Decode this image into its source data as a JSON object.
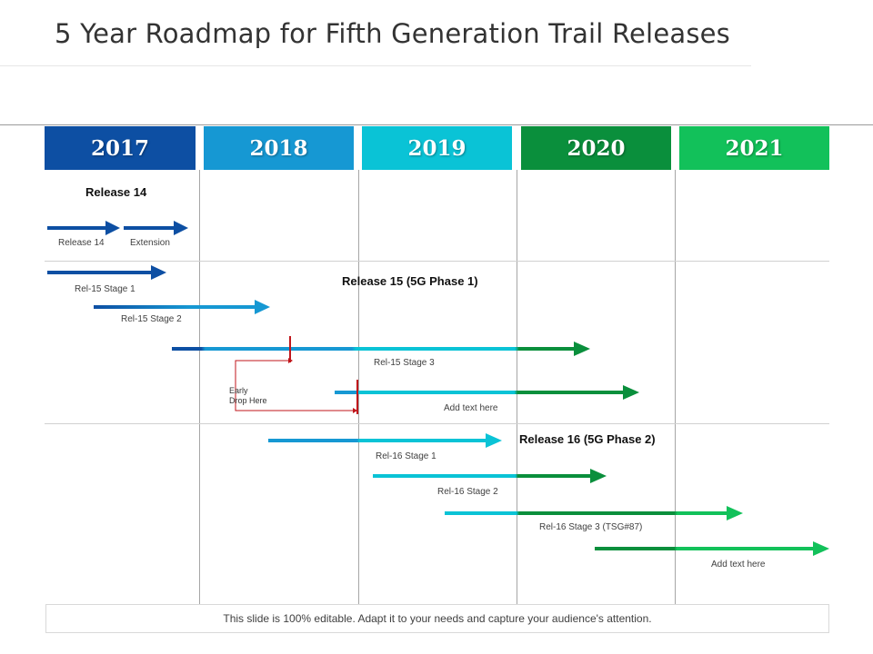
{
  "title": "5 Year Roadmap for Fifth Generation Trail Releases",
  "years": [
    {
      "label": "2017",
      "color": "#0d4fa3"
    },
    {
      "label": "2018",
      "color": "#1698d3"
    },
    {
      "label": "2019",
      "color": "#0ac3d6"
    },
    {
      "label": "2020",
      "color": "#0a8f3c"
    },
    {
      "label": "2021",
      "color": "#12c15a"
    }
  ],
  "sections": {
    "release14": "Release 14",
    "release15": "Release 15 (5G Phase 1)",
    "release16": "Release 16 (5G Phase 2)"
  },
  "labels": {
    "rel14": "Release 14",
    "extension": "Extension",
    "rel15_stage1": "Rel-15 Stage 1",
    "rel15_stage2": "Rel-15 Stage 2",
    "rel15_stage3": "Rel-15 Stage 3",
    "early_drop_line1": "Early",
    "early_drop_line2": "Drop Here",
    "add_text_1": "Add text here",
    "rel16_stage1": "Rel-16 Stage 1",
    "rel16_stage2": "Rel-16 Stage 2",
    "rel16_stage3": "Rel-16 Stage 3 (TSG#87)",
    "add_text_2": "Add text here"
  },
  "footer": "This slide is 100% editable. Adapt it to your needs and capture your audience's attention."
}
